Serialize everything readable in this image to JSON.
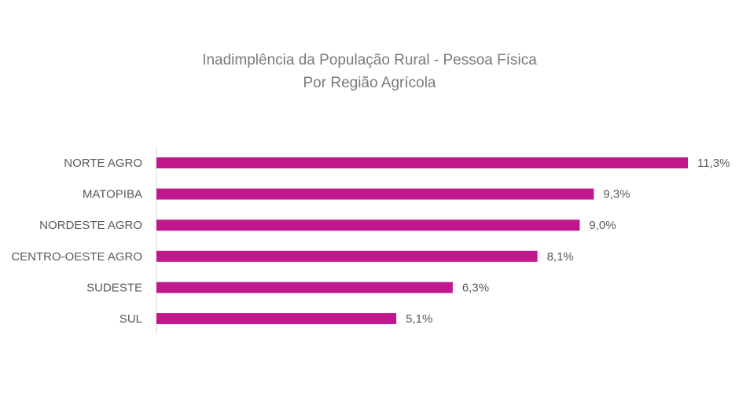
{
  "chart_data": {
    "type": "bar",
    "orientation": "horizontal",
    "title": "Inadimplência da População Rural - Pessoa Física",
    "subtitle": "Por Região Agrícola",
    "categories": [
      "NORTE AGRO",
      "MATOPIBA",
      "NORDESTE AGRO",
      "CENTRO-OESTE AGRO",
      "SUDESTE",
      "SUL"
    ],
    "values": [
      11.3,
      9.3,
      9.0,
      8.1,
      6.3,
      5.1
    ],
    "value_labels": [
      "11,3%",
      "9,3%",
      "9,0%",
      "8,1%",
      "6,3%",
      "5,1%"
    ],
    "xlim": [
      0,
      11.3
    ],
    "grid": false,
    "legend": "none",
    "bar_color": "#C0178C"
  }
}
